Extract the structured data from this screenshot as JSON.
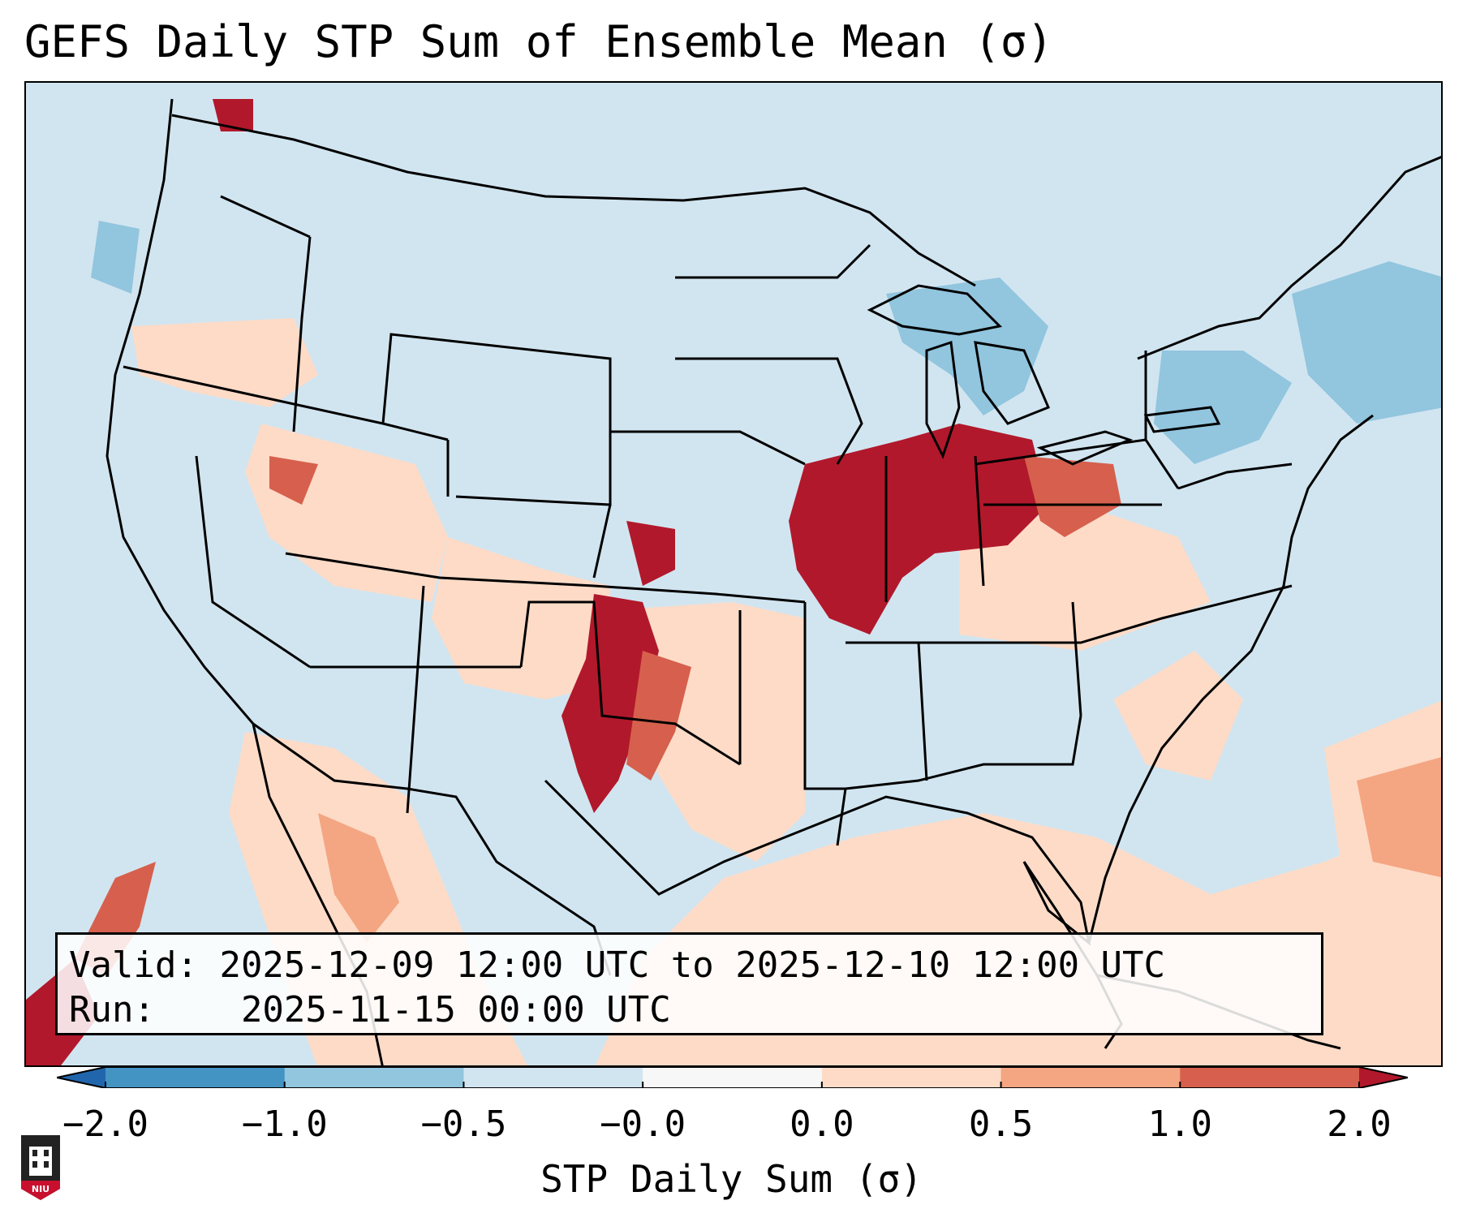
{
  "title": "GEFS Daily STP Sum of Ensemble Mean (σ)",
  "info": {
    "valid_label": "Valid:",
    "valid_value": "2025-12-09 12:00 UTC to 2025-12-10 12:00 UTC",
    "run_label": "Run:",
    "run_value": "2025-11-15 00:00 UTC"
  },
  "colorbar": {
    "label": "STP Daily Sum (σ)",
    "ticks": [
      "−2.0",
      "−1.0",
      "−0.5",
      "−0.0",
      "0.0",
      "0.5",
      "1.0",
      "2.0"
    ],
    "bins": [
      {
        "range": "< -2.0",
        "color": "#2166ac"
      },
      {
        "range": "-2.0 to -1.0",
        "color": "#4393c3"
      },
      {
        "range": "-1.0 to -0.5",
        "color": "#92c5de"
      },
      {
        "range": "-0.5 to -0.0",
        "color": "#d1e5f0"
      },
      {
        "range": "-0.0 to 0.0",
        "color": "#f7f7f7"
      },
      {
        "range": "0.0 to 0.5",
        "color": "#fddbc7"
      },
      {
        "range": "0.5 to 1.0",
        "color": "#f4a582"
      },
      {
        "range": "1.0 to 2.0",
        "color": "#d6604d"
      },
      {
        "range": "> 2.0",
        "color": "#b2182b"
      }
    ]
  },
  "map": {
    "region": "CONUS",
    "background_color": "#d1e5f0",
    "features": [
      {
        "name": "Midwest (IL/IN/IA/MO/OH)",
        "category": "> 2.0"
      },
      {
        "name": "Southern Plains (TX Panhandle/OK/KS)",
        "category": "1.0 to 2.0"
      },
      {
        "name": "Great Lakes / Northeast",
        "category": "-1.0 to -0.5"
      },
      {
        "name": "Gulf of Mexico / Southeast",
        "category": "0.0 to 0.5"
      },
      {
        "name": "Pacific off Baja California",
        "category": "1.0 to 2.0"
      }
    ]
  },
  "logo": {
    "text": "NIU"
  }
}
